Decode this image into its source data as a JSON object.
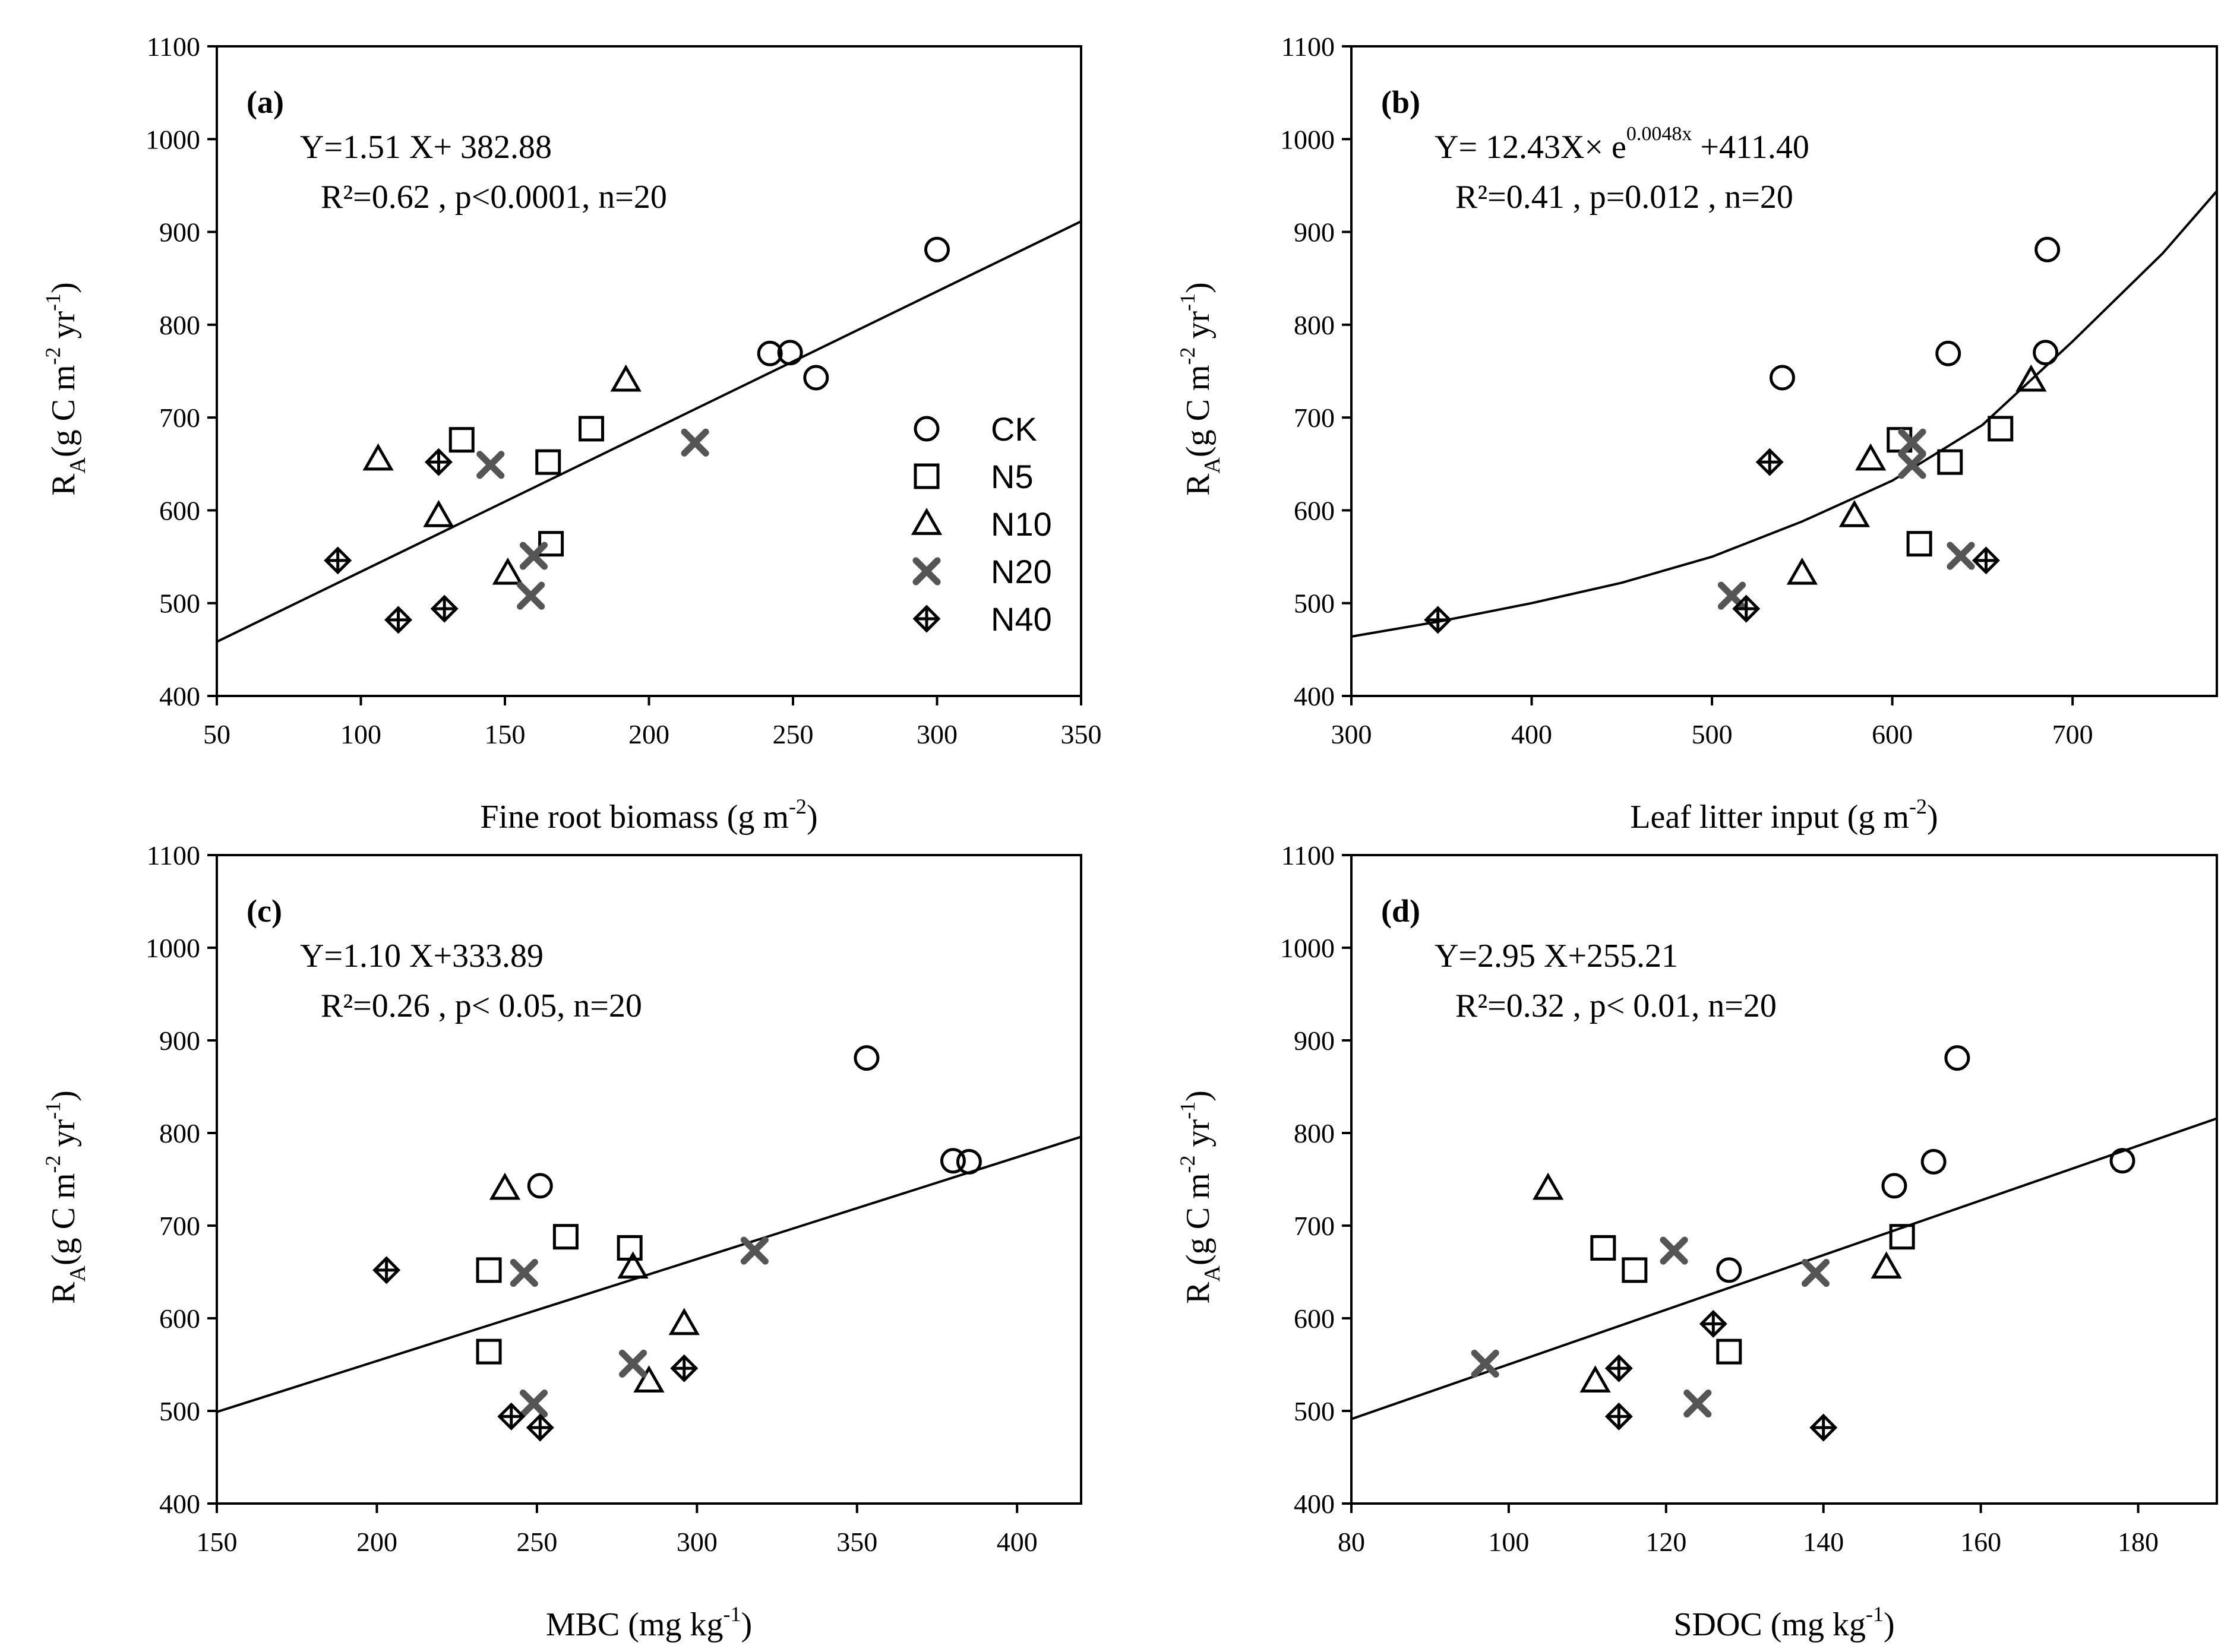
{
  "figure": {
    "legend": [
      {
        "label": "CK",
        "marker": "circle"
      },
      {
        "label": "N5",
        "marker": "square"
      },
      {
        "label": "N10",
        "marker": "triangle"
      },
      {
        "label": "N20",
        "marker": "x"
      },
      {
        "label": "N40",
        "marker": "circle-plus"
      }
    ]
  },
  "chart_data": [
    {
      "type": "scatter",
      "panel": "(a)",
      "equation": "Y=1.51 X+ 382.88",
      "stats": "R²=0.62 , p<0.0001, n=20",
      "xlabel": "Fine root biomass (g m⁻²)",
      "ylabel": "Rₐ (g C m⁻² yr⁻¹)",
      "ylabel_main": "R",
      "ylabel_sub": "A",
      "ylabel_rest": "(g C m",
      "ylabel_sup1": "-2",
      "ylabel_mid": " yr",
      "ylabel_sup2": "-1",
      "ylabel_end": ")",
      "xlabel_main": "Fine root biomass (g m",
      "xlabel_sup": "-2",
      "xlabel_end": ")",
      "xlim": [
        50,
        350
      ],
      "ylim": [
        400,
        1100
      ],
      "xticks": [
        50,
        100,
        150,
        200,
        250,
        300,
        350
      ],
      "yticks": [
        400,
        500,
        600,
        700,
        800,
        900,
        1000,
        1100
      ],
      "fit": {
        "kind": "linear",
        "slope": 1.51,
        "intercept": 382.88
      },
      "show_legend": true,
      "series": [
        {
          "name": "CK",
          "marker": "circle",
          "x": [
            300,
            242,
            249,
            258
          ],
          "y": [
            881,
            769,
            770,
            743
          ]
        },
        {
          "name": "N5",
          "marker": "square",
          "x": [
            135,
            180,
            165,
            166
          ],
          "y": [
            676,
            688,
            652,
            564
          ]
        },
        {
          "name": "N10",
          "marker": "triangle",
          "x": [
            192,
            106,
            127,
            151
          ],
          "y": [
            740,
            655,
            594,
            532
          ]
        },
        {
          "name": "N20",
          "marker": "x",
          "x": [
            216,
            145,
            160,
            159
          ],
          "y": [
            673,
            649,
            551,
            508
          ]
        },
        {
          "name": "N40",
          "marker": "circle-plus",
          "x": [
            127,
            92,
            113,
            129
          ],
          "y": [
            652,
            546,
            482,
            494
          ]
        }
      ]
    },
    {
      "type": "scatter",
      "panel": "(b)",
      "equation": "Y= 12.43X× e",
      "equation_sup": "0.0048x",
      "equation_tail": " +411.40",
      "stats": "R²=0.41 , p=0.012 , n=20",
      "xlabel": "Leaf litter input (g m⁻²)",
      "ylabel": "Rₐ (g C m⁻² yr⁻¹)",
      "ylabel_main": "R",
      "ylabel_sub": "A",
      "ylabel_rest": "(g C m",
      "ylabel_sup1": "-2",
      "ylabel_mid": " yr",
      "ylabel_sup2": "-1",
      "ylabel_end": ")",
      "xlabel_main": "Leaf litter input (g m",
      "xlabel_sup": "-2",
      "xlabel_end": ")",
      "xlim": [
        300,
        780
      ],
      "ylim": [
        400,
        1100
      ],
      "xticks": [
        300,
        400,
        500,
        600,
        700
      ],
      "yticks": [
        400,
        500,
        600,
        700,
        800,
        900,
        1000,
        1100
      ],
      "fit": {
        "kind": "exp_curve",
        "xmin": 300,
        "xmax": 780,
        "points_x": [
          300,
          348,
          400,
          450,
          500,
          550,
          600,
          650,
          700,
          750,
          780
        ],
        "points_y": [
          464,
          480,
          500,
          522,
          550,
          588,
          632,
          692,
          782,
          877,
          944
        ]
      },
      "show_legend": false,
      "series": [
        {
          "name": "CK",
          "marker": "circle",
          "x": [
            686,
            631,
            539,
            685
          ],
          "y": [
            881,
            769,
            743,
            770
          ]
        },
        {
          "name": "N5",
          "marker": "square",
          "x": [
            604,
            660,
            632,
            615
          ],
          "y": [
            676,
            688,
            652,
            564
          ]
        },
        {
          "name": "N10",
          "marker": "triangle",
          "x": [
            677,
            588,
            579,
            550
          ],
          "y": [
            740,
            655,
            594,
            532
          ]
        },
        {
          "name": "N20",
          "marker": "x",
          "x": [
            611,
            611,
            638,
            511
          ],
          "y": [
            673,
            649,
            551,
            508
          ]
        },
        {
          "name": "N40",
          "marker": "circle-plus",
          "x": [
            532,
            652,
            348,
            519
          ],
          "y": [
            652,
            546,
            482,
            494
          ]
        }
      ]
    },
    {
      "type": "scatter",
      "panel": "(c)",
      "equation": "Y=1.10 X+333.89",
      "stats": "R²=0.26 , p< 0.05, n=20",
      "xlabel": "MBC (mg kg⁻¹)",
      "ylabel": "Rₐ (g C m⁻² yr⁻¹)",
      "ylabel_main": "R",
      "ylabel_sub": "A",
      "ylabel_rest": "(g C m",
      "ylabel_sup1": "-2",
      "ylabel_mid": " yr",
      "ylabel_sup2": "-1",
      "ylabel_end": ")",
      "xlabel_main": "MBC (mg kg",
      "xlabel_sup": "-1",
      "xlabel_end": ")",
      "xlim": [
        150,
        420
      ],
      "ylim": [
        400,
        1100
      ],
      "xticks": [
        150,
        200,
        250,
        300,
        350,
        400
      ],
      "yticks": [
        400,
        500,
        600,
        700,
        800,
        900,
        1000,
        1100
      ],
      "fit": {
        "kind": "linear",
        "slope": 1.1,
        "intercept": 333.89
      },
      "show_legend": false,
      "series": [
        {
          "name": "CK",
          "marker": "circle",
          "x": [
            353,
            251,
            380,
            385
          ],
          "y": [
            881,
            743,
            770,
            769
          ]
        },
        {
          "name": "N5",
          "marker": "square",
          "x": [
            259,
            279,
            235,
            235
          ],
          "y": [
            688,
            676,
            652,
            564
          ]
        },
        {
          "name": "N10",
          "marker": "triangle",
          "x": [
            240,
            280,
            296,
            285
          ],
          "y": [
            740,
            655,
            594,
            532
          ]
        },
        {
          "name": "N20",
          "marker": "x",
          "x": [
            318,
            246,
            280,
            249
          ],
          "y": [
            673,
            649,
            551,
            508
          ]
        },
        {
          "name": "N40",
          "marker": "circle-plus",
          "x": [
            203,
            296,
            242,
            251
          ],
          "y": [
            652,
            546,
            494,
            482
          ]
        }
      ]
    },
    {
      "type": "scatter",
      "panel": "(d)",
      "equation": "Y=2.95 X+255.21",
      "stats": "R²=0.32 , p< 0.01, n=20",
      "xlabel": "SDOC (mg kg⁻¹)",
      "ylabel": "Rₐ (g C m⁻² yr⁻¹)",
      "ylabel_main": "R",
      "ylabel_sub": "A",
      "ylabel_rest": "(g C m",
      "ylabel_sup1": "-2",
      "ylabel_mid": " yr",
      "ylabel_sup2": "-1",
      "ylabel_end": ")",
      "xlabel_main": "SDOC (mg kg",
      "xlabel_sup": "-1",
      "xlabel_end": ")",
      "xlim": [
        80,
        190
      ],
      "ylim": [
        400,
        1100
      ],
      "xticks": [
        80,
        100,
        120,
        140,
        160,
        180
      ],
      "yticks": [
        400,
        500,
        600,
        700,
        800,
        900,
        1000,
        1100
      ],
      "fit": {
        "kind": "linear",
        "slope": 2.95,
        "intercept": 255.21
      },
      "show_legend": false,
      "series": [
        {
          "name": "CK",
          "marker": "circle",
          "x": [
            157,
            154,
            149,
            178,
            128
          ],
          "y": [
            881,
            769,
            743,
            770,
            652
          ]
        },
        {
          "name": "N5",
          "marker": "square",
          "x": [
            112,
            150,
            116,
            128
          ],
          "y": [
            676,
            688,
            652,
            564
          ]
        },
        {
          "name": "N10",
          "marker": "triangle",
          "x": [
            105,
            148,
            111
          ],
          "y": [
            740,
            655,
            532
          ]
        },
        {
          "name": "N20",
          "marker": "x",
          "x": [
            121,
            139,
            97,
            124
          ],
          "y": [
            673,
            649,
            551,
            508
          ]
        },
        {
          "name": "N40",
          "marker": "circle-plus",
          "x": [
            126,
            114,
            114,
            140
          ],
          "y": [
            594,
            546,
            494,
            482
          ]
        }
      ]
    }
  ]
}
